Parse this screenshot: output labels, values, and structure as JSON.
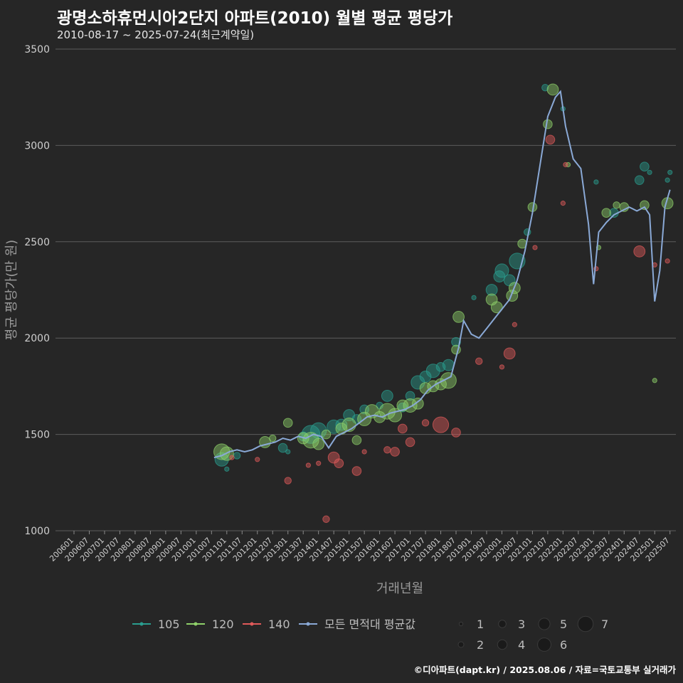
{
  "title": "광명소하휴먼시아2단지 아파트(2010) 월별 평균 평당가",
  "subtitle": "2010-08-17 ~ 2025-07-24(최근계약일)",
  "credit": "©디아파트(dapt.kr) / 2025.08.06 / 자료=국토교통부 실거래가",
  "chart_data": {
    "type": "scatter",
    "xlabel": "거래년월",
    "ylabel": "평균 평당가(만 원)",
    "ylim": [
      1000,
      3500
    ],
    "yticks": [
      1000,
      1500,
      2000,
      2500,
      3000,
      3500
    ],
    "xlim": [
      "2006-01",
      "2025-12"
    ],
    "xticks": [
      "200601",
      "200607",
      "200701",
      "200707",
      "200801",
      "200807",
      "200901",
      "200907",
      "201001",
      "201007",
      "201101",
      "201107",
      "201201",
      "201207",
      "201301",
      "201307",
      "201401",
      "201407",
      "201501",
      "201507",
      "201601",
      "201607",
      "201701",
      "201707",
      "201801",
      "201807",
      "201901",
      "201907",
      "202001",
      "202007",
      "202101",
      "202107",
      "202201",
      "202207",
      "202301",
      "202307",
      "202401",
      "202407",
      "202501",
      "202507"
    ],
    "grid": "horizontal",
    "legend": {
      "placement": "bottom",
      "series_entries": [
        {
          "label": "105",
          "color": "#2a9d8f"
        },
        {
          "label": "120",
          "color": "#8fd16a"
        },
        {
          "label": "140",
          "color": "#e05a5a"
        },
        {
          "label": "모든 면적대 평균값",
          "color": "#8aa9d6"
        }
      ],
      "size_entries": [
        "1",
        "2",
        "3",
        "4",
        "5",
        "6",
        "7"
      ]
    },
    "series": [
      {
        "name": "105",
        "color": "#2a9d8f",
        "points": [
          {
            "x": "2010-11",
            "y": 1370,
            "n": 5
          },
          {
            "x": "2011-01",
            "y": 1320,
            "n": 1
          },
          {
            "x": "2011-05",
            "y": 1390,
            "n": 2
          },
          {
            "x": "2012-11",
            "y": 1430,
            "n": 3
          },
          {
            "x": "2013-01",
            "y": 1410,
            "n": 1
          },
          {
            "x": "2013-07",
            "y": 1490,
            "n": 3
          },
          {
            "x": "2013-10",
            "y": 1500,
            "n": 7
          },
          {
            "x": "2014-01",
            "y": 1520,
            "n": 6
          },
          {
            "x": "2014-07",
            "y": 1540,
            "n": 5
          },
          {
            "x": "2014-10",
            "y": 1550,
            "n": 4
          },
          {
            "x": "2015-01",
            "y": 1600,
            "n": 4
          },
          {
            "x": "2015-04",
            "y": 1580,
            "n": 3
          },
          {
            "x": "2015-07",
            "y": 1630,
            "n": 3
          },
          {
            "x": "2016-01",
            "y": 1650,
            "n": 2
          },
          {
            "x": "2016-04",
            "y": 1700,
            "n": 4
          },
          {
            "x": "2016-10",
            "y": 1640,
            "n": 3
          },
          {
            "x": "2017-01",
            "y": 1700,
            "n": 3
          },
          {
            "x": "2017-04",
            "y": 1770,
            "n": 5
          },
          {
            "x": "2017-07",
            "y": 1800,
            "n": 4
          },
          {
            "x": "2017-10",
            "y": 1830,
            "n": 5
          },
          {
            "x": "2018-01",
            "y": 1850,
            "n": 3
          },
          {
            "x": "2018-04",
            "y": 1860,
            "n": 4
          },
          {
            "x": "2018-07",
            "y": 1980,
            "n": 3
          },
          {
            "x": "2019-02",
            "y": 2210,
            "n": 1
          },
          {
            "x": "2019-09",
            "y": 2250,
            "n": 4
          },
          {
            "x": "2019-12",
            "y": 2320,
            "n": 4
          },
          {
            "x": "2020-01",
            "y": 2350,
            "n": 5
          },
          {
            "x": "2020-04",
            "y": 2300,
            "n": 4
          },
          {
            "x": "2020-07",
            "y": 2400,
            "n": 6
          },
          {
            "x": "2020-11",
            "y": 2550,
            "n": 2
          },
          {
            "x": "2021-06",
            "y": 3300,
            "n": 2
          },
          {
            "x": "2022-01",
            "y": 3190,
            "n": 1
          },
          {
            "x": "2023-02",
            "y": 2810,
            "n": 1
          },
          {
            "x": "2023-09",
            "y": 2650,
            "n": 3
          },
          {
            "x": "2024-07",
            "y": 2820,
            "n": 3
          },
          {
            "x": "2024-09",
            "y": 2890,
            "n": 3
          },
          {
            "x": "2024-11",
            "y": 2860,
            "n": 1
          },
          {
            "x": "2025-06",
            "y": 2820,
            "n": 1
          },
          {
            "x": "2025-07",
            "y": 2860,
            "n": 1
          }
        ]
      },
      {
        "name": "120",
        "color": "#8fd16a",
        "points": [
          {
            "x": "2010-11",
            "y": 1410,
            "n": 6
          },
          {
            "x": "2011-01",
            "y": 1400,
            "n": 5
          },
          {
            "x": "2012-04",
            "y": 1460,
            "n": 4
          },
          {
            "x": "2012-07",
            "y": 1480,
            "n": 2
          },
          {
            "x": "2013-01",
            "y": 1560,
            "n": 3
          },
          {
            "x": "2013-07",
            "y": 1480,
            "n": 4
          },
          {
            "x": "2013-10",
            "y": 1470,
            "n": 6
          },
          {
            "x": "2014-01",
            "y": 1450,
            "n": 4
          },
          {
            "x": "2014-04",
            "y": 1500,
            "n": 3
          },
          {
            "x": "2014-10",
            "y": 1530,
            "n": 4
          },
          {
            "x": "2015-01",
            "y": 1550,
            "n": 5
          },
          {
            "x": "2015-04",
            "y": 1470,
            "n": 3
          },
          {
            "x": "2015-07",
            "y": 1580,
            "n": 5
          },
          {
            "x": "2015-10",
            "y": 1620,
            "n": 5
          },
          {
            "x": "2016-01",
            "y": 1590,
            "n": 4
          },
          {
            "x": "2016-04",
            "y": 1620,
            "n": 6
          },
          {
            "x": "2016-07",
            "y": 1600,
            "n": 5
          },
          {
            "x": "2016-10",
            "y": 1650,
            "n": 4
          },
          {
            "x": "2017-01",
            "y": 1650,
            "n": 5
          },
          {
            "x": "2017-04",
            "y": 1660,
            "n": 4
          },
          {
            "x": "2017-07",
            "y": 1740,
            "n": 4
          },
          {
            "x": "2017-10",
            "y": 1750,
            "n": 4
          },
          {
            "x": "2018-01",
            "y": 1760,
            "n": 4
          },
          {
            "x": "2018-04",
            "y": 1780,
            "n": 6
          },
          {
            "x": "2018-07",
            "y": 1940,
            "n": 3
          },
          {
            "x": "2018-08",
            "y": 2110,
            "n": 4
          },
          {
            "x": "2019-09",
            "y": 2200,
            "n": 4
          },
          {
            "x": "2019-11",
            "y": 2160,
            "n": 4
          },
          {
            "x": "2020-05",
            "y": 2220,
            "n": 4
          },
          {
            "x": "2020-06",
            "y": 2260,
            "n": 4
          },
          {
            "x": "2020-09",
            "y": 2490,
            "n": 3
          },
          {
            "x": "2021-01",
            "y": 2680,
            "n": 3
          },
          {
            "x": "2021-07",
            "y": 3110,
            "n": 3
          },
          {
            "x": "2021-09",
            "y": 3290,
            "n": 4
          },
          {
            "x": "2022-03",
            "y": 2900,
            "n": 1
          },
          {
            "x": "2023-03",
            "y": 2470,
            "n": 1
          },
          {
            "x": "2023-06",
            "y": 2650,
            "n": 3
          },
          {
            "x": "2023-10",
            "y": 2690,
            "n": 2
          },
          {
            "x": "2024-01",
            "y": 2680,
            "n": 3
          },
          {
            "x": "2024-09",
            "y": 2690,
            "n": 3
          },
          {
            "x": "2025-01",
            "y": 1780,
            "n": 1
          },
          {
            "x": "2025-06",
            "y": 2700,
            "n": 4
          }
        ]
      },
      {
        "name": "140",
        "color": "#e05a5a",
        "points": [
          {
            "x": "2011-03",
            "y": 1380,
            "n": 1
          },
          {
            "x": "2012-01",
            "y": 1370,
            "n": 1
          },
          {
            "x": "2013-01",
            "y": 1260,
            "n": 2
          },
          {
            "x": "2013-09",
            "y": 1340,
            "n": 1
          },
          {
            "x": "2014-01",
            "y": 1350,
            "n": 1
          },
          {
            "x": "2014-04",
            "y": 1060,
            "n": 2
          },
          {
            "x": "2014-07",
            "y": 1380,
            "n": 4
          },
          {
            "x": "2014-09",
            "y": 1350,
            "n": 3
          },
          {
            "x": "2015-04",
            "y": 1310,
            "n": 3
          },
          {
            "x": "2015-07",
            "y": 1410,
            "n": 1
          },
          {
            "x": "2016-04",
            "y": 1420,
            "n": 2
          },
          {
            "x": "2016-07",
            "y": 1410,
            "n": 3
          },
          {
            "x": "2016-10",
            "y": 1530,
            "n": 3
          },
          {
            "x": "2017-01",
            "y": 1460,
            "n": 3
          },
          {
            "x": "2017-07",
            "y": 1560,
            "n": 2
          },
          {
            "x": "2018-01",
            "y": 1550,
            "n": 6
          },
          {
            "x": "2018-07",
            "y": 1510,
            "n": 3
          },
          {
            "x": "2019-04",
            "y": 1880,
            "n": 2
          },
          {
            "x": "2020-01",
            "y": 1850,
            "n": 1
          },
          {
            "x": "2020-04",
            "y": 1920,
            "n": 4
          },
          {
            "x": "2020-06",
            "y": 2070,
            "n": 1
          },
          {
            "x": "2021-02",
            "y": 2470,
            "n": 1
          },
          {
            "x": "2021-08",
            "y": 3030,
            "n": 3
          },
          {
            "x": "2022-01",
            "y": 2700,
            "n": 1
          },
          {
            "x": "2022-02",
            "y": 2900,
            "n": 1
          },
          {
            "x": "2023-02",
            "y": 2360,
            "n": 1
          },
          {
            "x": "2024-07",
            "y": 2450,
            "n": 4
          },
          {
            "x": "2025-01",
            "y": 2380,
            "n": 1
          },
          {
            "x": "2025-06",
            "y": 2400,
            "n": 1
          }
        ]
      },
      {
        "name": "모든 면적대 평균값",
        "color": "#8aa9d6",
        "type": "line",
        "points": [
          {
            "x": "2010-08",
            "y": 1380
          },
          {
            "x": "2010-11",
            "y": 1390
          },
          {
            "x": "2011-02",
            "y": 1410
          },
          {
            "x": "2011-05",
            "y": 1420
          },
          {
            "x": "2011-08",
            "y": 1410
          },
          {
            "x": "2011-11",
            "y": 1420
          },
          {
            "x": "2012-02",
            "y": 1440
          },
          {
            "x": "2012-05",
            "y": 1450
          },
          {
            "x": "2012-08",
            "y": 1460
          },
          {
            "x": "2012-11",
            "y": 1480
          },
          {
            "x": "2013-02",
            "y": 1470
          },
          {
            "x": "2013-05",
            "y": 1490
          },
          {
            "x": "2013-08",
            "y": 1480
          },
          {
            "x": "2013-11",
            "y": 1500
          },
          {
            "x": "2014-02",
            "y": 1490
          },
          {
            "x": "2014-05",
            "y": 1430
          },
          {
            "x": "2014-08",
            "y": 1490
          },
          {
            "x": "2014-11",
            "y": 1510
          },
          {
            "x": "2015-02",
            "y": 1530
          },
          {
            "x": "2015-05",
            "y": 1560
          },
          {
            "x": "2015-08",
            "y": 1590
          },
          {
            "x": "2015-11",
            "y": 1600
          },
          {
            "x": "2016-02",
            "y": 1590
          },
          {
            "x": "2016-05",
            "y": 1610
          },
          {
            "x": "2016-08",
            "y": 1620
          },
          {
            "x": "2016-11",
            "y": 1630
          },
          {
            "x": "2017-02",
            "y": 1650
          },
          {
            "x": "2017-05",
            "y": 1680
          },
          {
            "x": "2017-08",
            "y": 1730
          },
          {
            "x": "2017-11",
            "y": 1760
          },
          {
            "x": "2018-02",
            "y": 1780
          },
          {
            "x": "2018-05",
            "y": 1800
          },
          {
            "x": "2018-08",
            "y": 1950
          },
          {
            "x": "2018-10",
            "y": 2090
          },
          {
            "x": "2019-01",
            "y": 2020
          },
          {
            "x": "2019-04",
            "y": 2000
          },
          {
            "x": "2019-07",
            "y": 2050
          },
          {
            "x": "2019-10",
            "y": 2100
          },
          {
            "x": "2020-01",
            "y": 2150
          },
          {
            "x": "2020-04",
            "y": 2200
          },
          {
            "x": "2020-07",
            "y": 2300
          },
          {
            "x": "2020-10",
            "y": 2450
          },
          {
            "x": "2021-01",
            "y": 2650
          },
          {
            "x": "2021-04",
            "y": 2900
          },
          {
            "x": "2021-07",
            "y": 3150
          },
          {
            "x": "2021-10",
            "y": 3250
          },
          {
            "x": "2021-12",
            "y": 3280
          },
          {
            "x": "2022-02",
            "y": 3100
          },
          {
            "x": "2022-05",
            "y": 2930
          },
          {
            "x": "2022-08",
            "y": 2880
          },
          {
            "x": "2022-11",
            "y": 2590
          },
          {
            "x": "2023-01",
            "y": 2280
          },
          {
            "x": "2023-03",
            "y": 2550
          },
          {
            "x": "2023-06",
            "y": 2600
          },
          {
            "x": "2023-09",
            "y": 2640
          },
          {
            "x": "2023-12",
            "y": 2660
          },
          {
            "x": "2024-03",
            "y": 2680
          },
          {
            "x": "2024-06",
            "y": 2660
          },
          {
            "x": "2024-09",
            "y": 2680
          },
          {
            "x": "2024-11",
            "y": 2640
          },
          {
            "x": "2025-01",
            "y": 2190
          },
          {
            "x": "2025-03",
            "y": 2350
          },
          {
            "x": "2025-05",
            "y": 2680
          },
          {
            "x": "2025-07",
            "y": 2770
          }
        ]
      }
    ]
  }
}
